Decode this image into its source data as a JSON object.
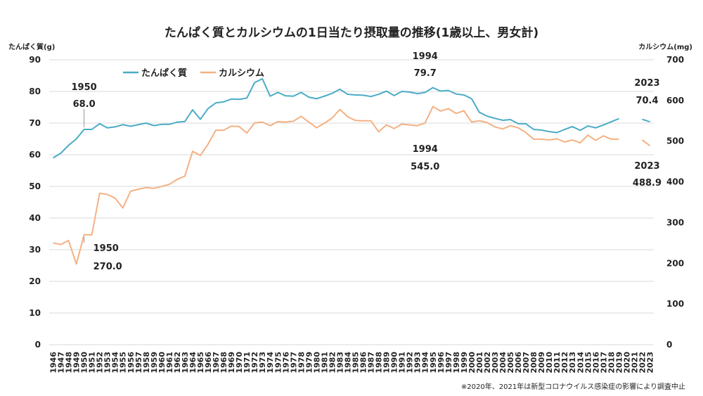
{
  "chart_data": {
    "type": "line",
    "title": "たんぱく質とカルシウムの1日当たり摂取量の推移(1歳以上、男女計)",
    "ylabel_left": "たんぱく質(g)",
    "ylabel_right": "カルシウム(mg)",
    "ylim_left": [
      0,
      90
    ],
    "ylim_right": [
      0,
      700
    ],
    "yticks_left": [
      "0",
      "10",
      "20",
      "30",
      "40",
      "50",
      "60",
      "70",
      "80",
      "90"
    ],
    "yticks_right": [
      "0",
      "100",
      "200",
      "300",
      "400",
      "500",
      "600",
      "700"
    ],
    "grid": true,
    "legend_position": "top-left",
    "note": "※2020年、2021年は新型コロナウイルス感染症の影響により調査中止",
    "x": [
      "1946",
      "1947",
      "1948",
      "1949",
      "1950",
      "1951",
      "1952",
      "1953",
      "1954",
      "1955",
      "1956",
      "1957",
      "1958",
      "1959",
      "1960",
      "1961",
      "1962",
      "1963",
      "1964",
      "1965",
      "1966",
      "1967",
      "1968",
      "1969",
      "1970",
      "1971",
      "1972",
      "1973",
      "1974",
      "1975",
      "1976",
      "1977",
      "1978",
      "1979",
      "1980",
      "1981",
      "1982",
      "1983",
      "1984",
      "1985",
      "1986",
      "1987",
      "1988",
      "1989",
      "1990",
      "1991",
      "1992",
      "1993",
      "1994",
      "1995",
      "1996",
      "1997",
      "1998",
      "1999",
      "2000",
      "2001",
      "2002",
      "2003",
      "2004",
      "2005",
      "2006",
      "2007",
      "2008",
      "2009",
      "2010",
      "2011",
      "2012",
      "2013",
      "2014",
      "2015",
      "2016",
      "2017",
      "2018",
      "2019",
      "2020",
      "2021",
      "2022",
      "2023"
    ],
    "series": [
      {
        "name": "たんぱく質",
        "axis": "left",
        "color": "#4bacc6",
        "values": [
          59.0,
          60.5,
          63.0,
          65.0,
          68.0,
          68.0,
          69.8,
          68.5,
          68.8,
          69.5,
          69.0,
          69.5,
          70.0,
          69.2,
          69.6,
          69.6,
          70.3,
          70.5,
          74.2,
          71.2,
          74.6,
          76.4,
          76.7,
          77.6,
          77.5,
          77.9,
          82.8,
          84.0,
          78.5,
          79.7,
          78.6,
          78.5,
          79.7,
          78.2,
          77.7,
          78.5,
          79.4,
          80.7,
          79.1,
          78.9,
          78.8,
          78.4,
          79.1,
          80.1,
          78.7,
          80.0,
          79.8,
          79.3,
          79.7,
          81.2,
          80.1,
          80.3,
          79.2,
          78.9,
          77.7,
          73.4,
          72.2,
          71.5,
          70.9,
          71.1,
          69.8,
          69.8,
          68.0,
          67.8,
          67.3,
          67.0,
          68.0,
          68.9,
          67.7,
          69.1,
          68.5,
          69.4,
          70.4,
          71.4,
          null,
          null,
          71.2,
          70.4
        ]
      },
      {
        "name": "カルシウム",
        "axis": "right",
        "color": "#f4b183",
        "values": [
          250,
          246,
          256,
          198,
          270,
          270,
          372,
          369,
          360,
          336,
          377,
          382,
          386,
          384,
          389,
          394,
          406,
          414,
          475,
          465,
          493,
          527,
          527,
          537,
          536,
          520,
          545,
          547,
          538,
          548,
          547,
          549,
          561,
          547,
          533,
          544,
          557,
          578,
          560,
          551,
          550,
          550,
          523,
          540,
          531,
          542,
          540,
          538,
          545,
          585,
          574,
          580,
          568,
          575,
          547,
          550,
          546,
          535,
          530,
          538,
          533,
          521,
          505,
          505,
          503,
          506,
          498,
          503,
          496,
          515,
          502,
          513,
          505,
          505,
          null,
          null,
          503,
          488.9
        ]
      }
    ],
    "annotations": [
      {
        "year": "1950",
        "value": "68.0",
        "series": "たんぱく質"
      },
      {
        "year": "1950",
        "value": "270.0",
        "series": "カルシウム"
      },
      {
        "year": "1994",
        "value": "79.7",
        "series": "たんぱく質"
      },
      {
        "year": "1994",
        "value": "545.0",
        "series": "カルシウム"
      },
      {
        "year": "2023",
        "value": "70.4",
        "series": "たんぱく質"
      },
      {
        "year": "2023",
        "value": "488.9",
        "series": "カルシウム"
      }
    ]
  }
}
